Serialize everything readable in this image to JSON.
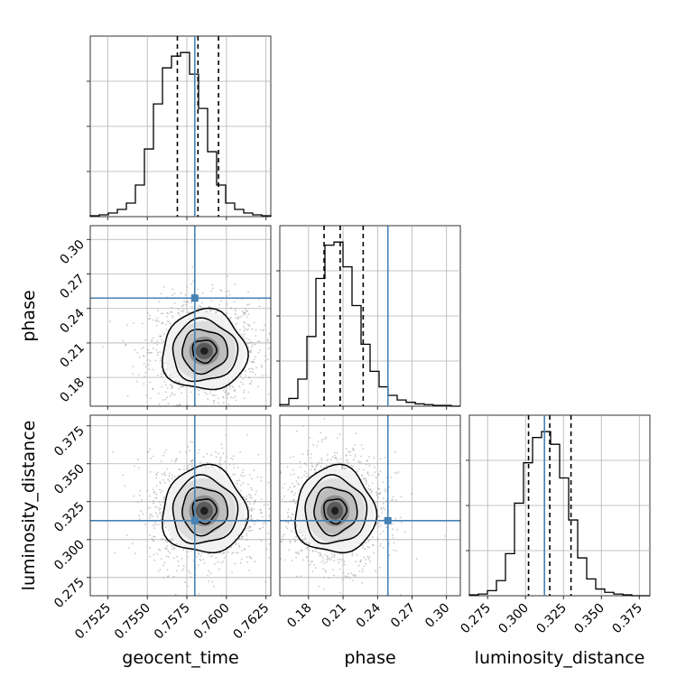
{
  "chart_data": {
    "type": "corner",
    "parameters": [
      "geocent_time",
      "phase",
      "luminosity_distance"
    ],
    "truths": {
      "geocent_time": 0.758,
      "phase": 0.249,
      "luminosity_distance": 0.3125
    },
    "ranges": {
      "geocent_time": [
        0.7514,
        0.7628
      ],
      "phase": [
        0.155,
        0.312
      ],
      "luminosity_distance": [
        0.263,
        0.382
      ]
    },
    "ticks": {
      "geocent_time": [
        0.7525,
        0.755,
        0.7575,
        0.76,
        0.7625
      ],
      "phase": [
        0.18,
        0.21,
        0.24,
        0.27,
        0.3
      ],
      "luminosity_distance": [
        0.275,
        0.3,
        0.325,
        0.35,
        0.375
      ]
    },
    "tick_labels": {
      "geocent_time": [
        "0.7525",
        "0.7550",
        "0.7575",
        "0.7600",
        "0.7625"
      ],
      "phase": [
        "0.18",
        "0.21",
        "0.24",
        "0.27",
        "0.30"
      ],
      "luminosity_distance": [
        "0.275",
        "0.300",
        "0.325",
        "0.350",
        "0.375"
      ]
    },
    "quantiles": {
      "geocent_time": [
        0.7569,
        0.7582,
        0.7595
      ],
      "phase": [
        0.1935,
        0.2075,
        0.2275
      ],
      "luminosity_distance": [
        0.302,
        0.316,
        0.33
      ]
    },
    "histograms": {
      "geocent_time": {
        "edges": [
          0.7514,
          0.75197,
          0.75254,
          0.75311,
          0.75368,
          0.75425,
          0.75482,
          0.75539,
          0.75596,
          0.75653,
          0.7571,
          0.75767,
          0.75824,
          0.75881,
          0.75938,
          0.75995,
          0.76052,
          0.76109,
          0.76166,
          0.76223,
          0.7628
        ],
        "counts": [
          1,
          2,
          4,
          8,
          15,
          35,
          75,
          125,
          165,
          178,
          182,
          158,
          120,
          72,
          35,
          15,
          8,
          4,
          2,
          1
        ]
      },
      "phase": {
        "edges": [
          0.155,
          0.16285,
          0.1707,
          0.17855,
          0.1864,
          0.19425,
          0.2021,
          0.20995,
          0.2178,
          0.22565,
          0.2335,
          0.24135,
          0.2492,
          0.25705,
          0.2649,
          0.27275,
          0.2806,
          0.28845,
          0.2963,
          0.30415,
          0.312
        ],
        "counts": [
          2,
          10,
          35,
          90,
          165,
          208,
          212,
          180,
          130,
          80,
          45,
          25,
          14,
          8,
          5,
          3,
          2,
          1,
          1,
          0
        ]
      },
      "luminosity_distance": {
        "edges": [
          0.263,
          0.26895,
          0.2749,
          0.28085,
          0.2868,
          0.29275,
          0.2987,
          0.30465,
          0.3106,
          0.31655,
          0.3225,
          0.32845,
          0.3344,
          0.34035,
          0.3463,
          0.35225,
          0.3582,
          0.36415,
          0.3701,
          0.37605,
          0.382
        ],
        "counts": [
          1,
          2,
          6,
          18,
          50,
          110,
          158,
          188,
          195,
          180,
          140,
          90,
          45,
          20,
          8,
          4,
          2,
          1,
          0,
          0
        ]
      }
    },
    "posterior_mode": {
      "geocent_time": 0.7586,
      "phase": 0.203,
      "luminosity_distance": 0.319
    },
    "grid": true,
    "xlabels": [
      "geocent_time",
      "phase",
      "luminosity_distance"
    ],
    "ylabels": [
      "",
      "phase",
      "luminosity_distance"
    ],
    "colors": {
      "truth": "#4682b4",
      "hist": "#000000",
      "quantile": "#000000",
      "grid": "#b0b0b0",
      "scatter": "#9a9a9a",
      "contour": "#000000"
    }
  }
}
